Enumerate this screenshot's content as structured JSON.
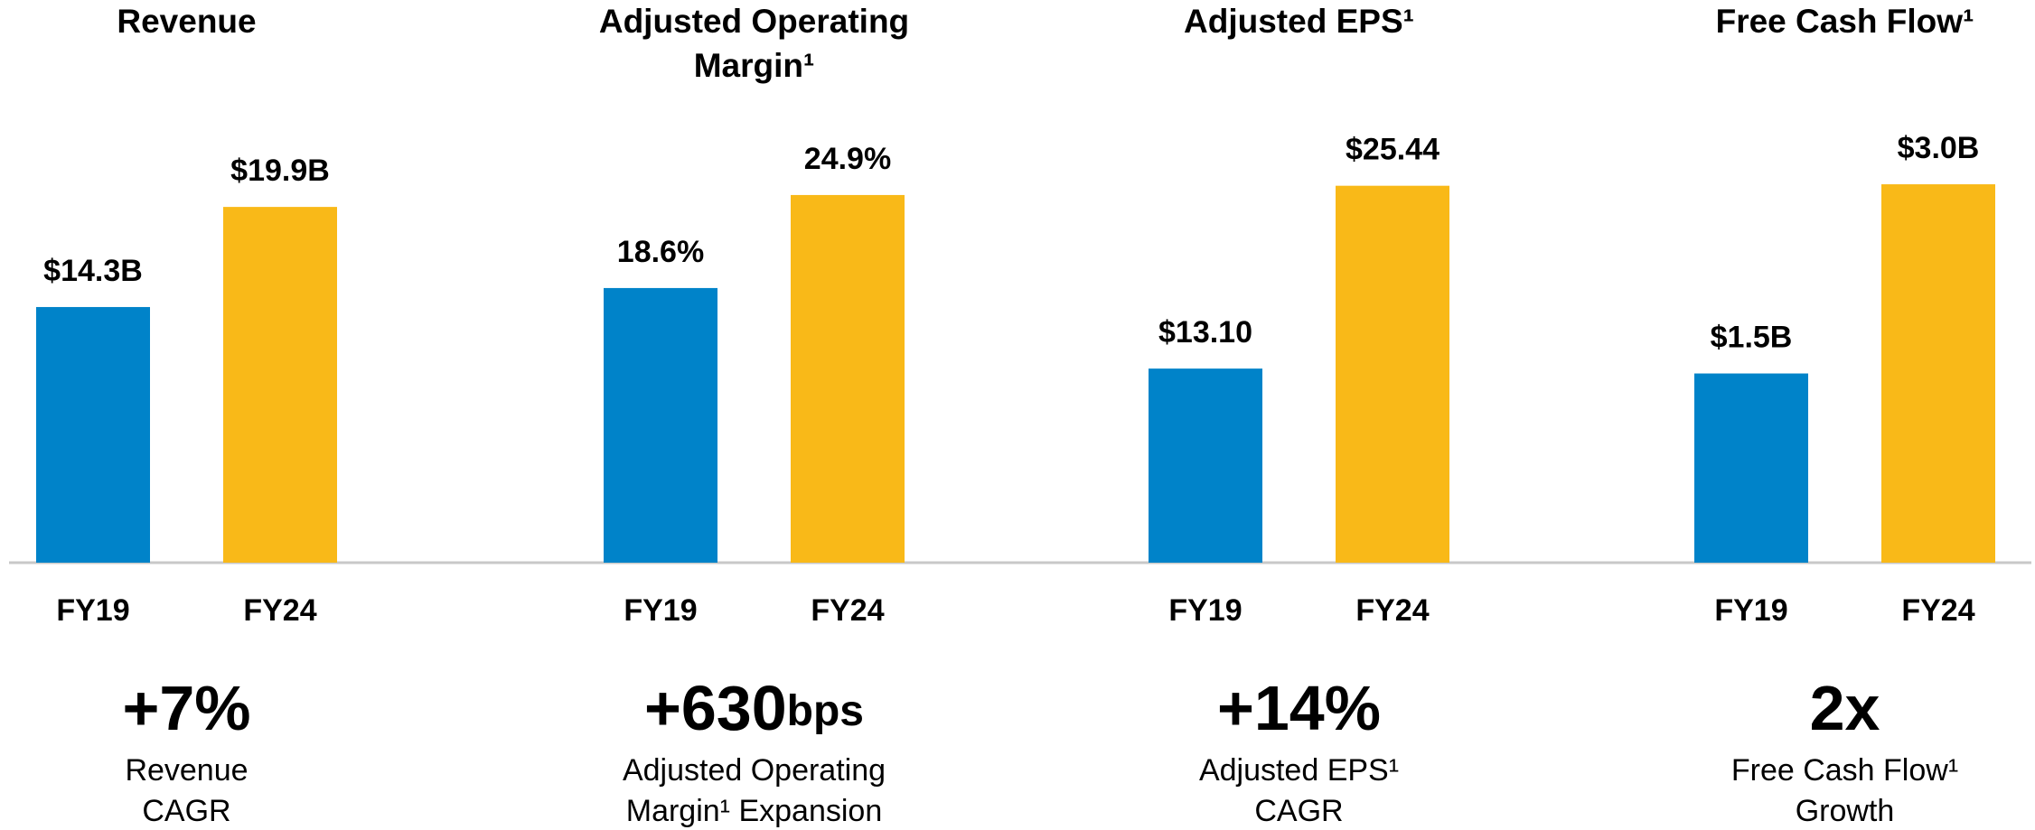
{
  "chart_data": [
    {
      "type": "bar",
      "title": [
        "Revenue"
      ],
      "categories": [
        "FY19",
        "FY24"
      ],
      "values": [
        14.3,
        19.9
      ],
      "value_labels": [
        "$14.3B",
        "$19.9B"
      ],
      "colors": [
        "#0083c9",
        "#f9b918"
      ],
      "ylim": [
        0,
        24.2
      ],
      "highlight": "+7%",
      "caption": [
        "Revenue",
        "CAGR"
      ]
    },
    {
      "type": "bar",
      "title": [
        "Adjusted Operating",
        "Margin¹"
      ],
      "categories": [
        "FY19",
        "FY24"
      ],
      "values": [
        18.6,
        24.9
      ],
      "value_labels": [
        "18.6%",
        "24.9%"
      ],
      "colors": [
        "#0083c9",
        "#f9b918"
      ],
      "ylim": [
        0,
        29.3
      ],
      "highlight": "+630",
      "highlight_unit": "bps",
      "caption": [
        "Adjusted Operating",
        "Margin¹ Expansion"
      ]
    },
    {
      "type": "bar",
      "title": [
        "Adjusted EPS¹"
      ],
      "categories": [
        "FY19",
        "FY24"
      ],
      "values": [
        13.1,
        25.44
      ],
      "value_labels": [
        "$13.10",
        "$25.44"
      ],
      "colors": [
        "#0083c9",
        "#f9b918"
      ],
      "ylim": [
        0,
        29.2
      ],
      "highlight": "+14%",
      "caption": [
        "Adjusted EPS¹",
        "CAGR"
      ]
    },
    {
      "type": "bar",
      "title": [
        "Free Cash Flow¹"
      ],
      "categories": [
        "FY19",
        "FY24"
      ],
      "values": [
        1.5,
        3.0
      ],
      "value_labels": [
        "$1.5B",
        "$3.0B"
      ],
      "colors": [
        "#0083c9",
        "#f9b918"
      ],
      "ylim": [
        0,
        3.43
      ],
      "highlight": "2x",
      "caption": [
        "Free Cash Flow¹",
        "Growth"
      ]
    }
  ]
}
